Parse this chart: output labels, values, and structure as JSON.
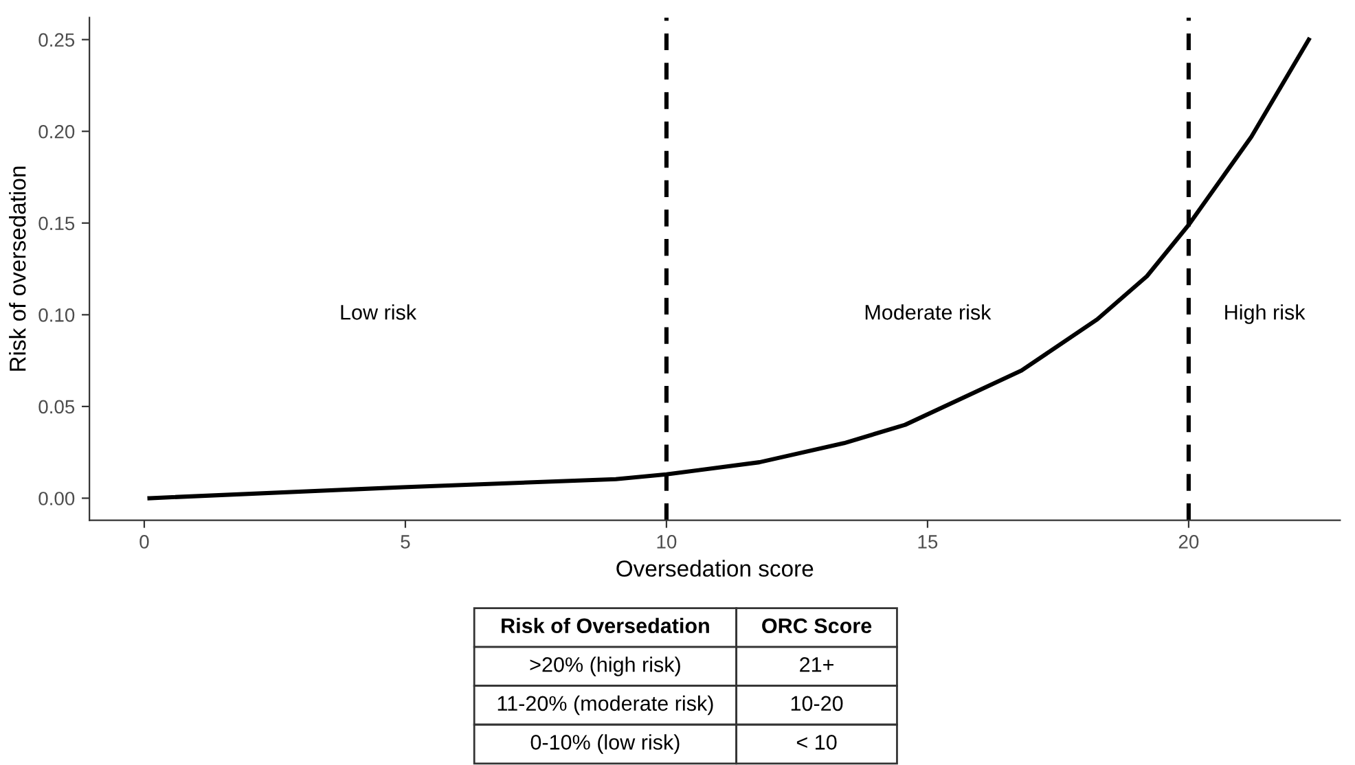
{
  "chart_data": {
    "type": "line",
    "xlabel": "Oversedation score",
    "ylabel": "Risk of oversedation",
    "x": [
      0.1,
      4.95,
      9.03,
      10.0,
      11.78,
      13.4,
      14.57,
      16.8,
      18.25,
      19.2,
      20.0,
      21.2,
      22.3
    ],
    "series": [
      {
        "color": "#000000",
        "values": [
          0.0,
          0.006,
          0.0104,
          0.013,
          0.0196,
          0.03,
          0.04,
          0.0696,
          0.0975,
          0.121,
          0.149,
          0.197,
          0.25
        ]
      }
    ],
    "xlim": [
      -1.05,
      22.9
    ],
    "ylim": [
      -0.012,
      0.262
    ],
    "xticks": [
      0,
      5,
      10,
      15,
      20
    ],
    "yticks": [
      {
        "value": 0,
        "label": "0.00"
      },
      {
        "value": 0.05,
        "label": "0.05"
      },
      {
        "value": 0.1,
        "label": "0.10"
      },
      {
        "value": 0.15,
        "label": "0.15"
      },
      {
        "value": 0.2,
        "label": "0.20"
      },
      {
        "value": 0.25,
        "label": "0.25"
      }
    ],
    "ref_lines": [
      {
        "axis": "x",
        "value": 10,
        "color": "#000000",
        "line_style": "dashed"
      },
      {
        "axis": "x",
        "value": 20,
        "color": "#000000",
        "line_style": "dashed"
      }
    ],
    "annotations": [
      "Low risk",
      "Moderate risk",
      "High risk",
      "Risk of Oversedation",
      "ORC Score",
      ">20% (high risk)",
      "21+",
      "11-20% (moderate risk)",
      "10-20",
      "0-10% (low risk)",
      "< 10"
    ],
    "grid": false,
    "legend": false,
    "marker": "none",
    "line_style": "solid"
  }
}
